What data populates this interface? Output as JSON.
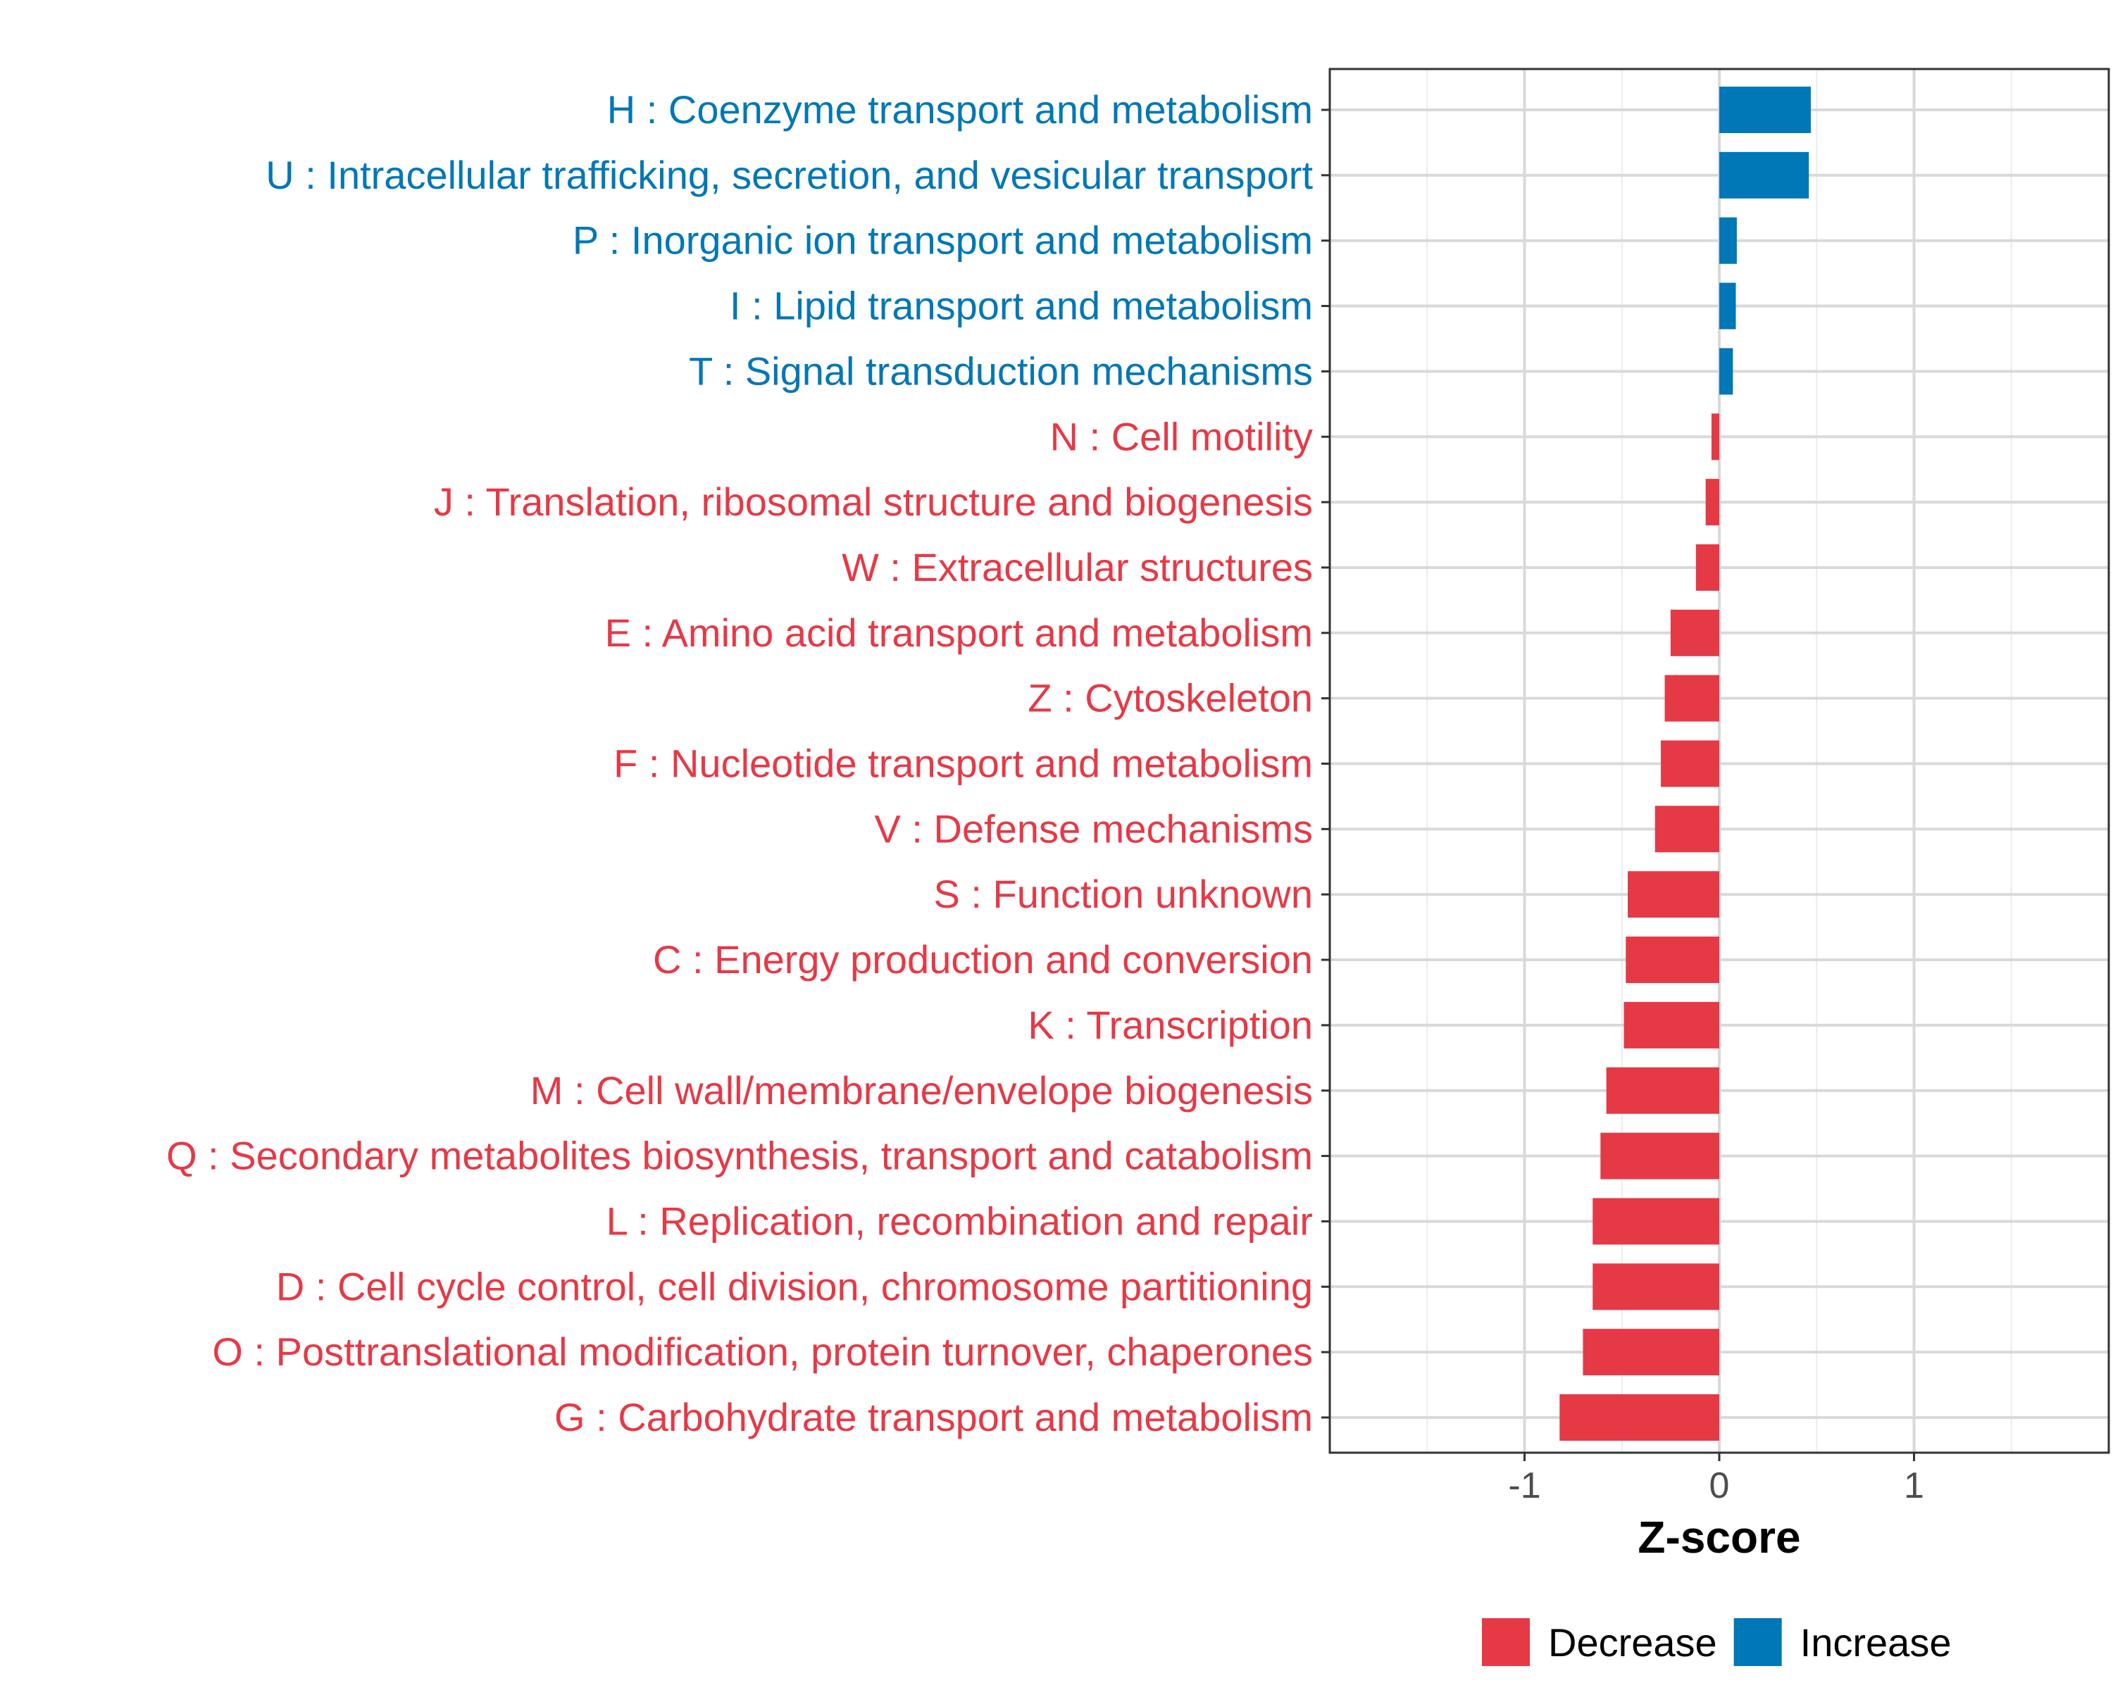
{
  "chart_data": {
    "type": "bar",
    "orientation": "horizontal",
    "title": "",
    "xlabel": "Z-score",
    "ylabel": "",
    "xlim": [
      -2,
      2
    ],
    "xticks": [
      -1,
      0,
      1
    ],
    "xtick_labels": [
      "-1",
      "0",
      "1"
    ],
    "grid": true,
    "categories": [
      "H : Coenzyme transport and metabolism",
      "U : Intracellular trafficking, secretion, and vesicular transport",
      "P : Inorganic ion transport and metabolism",
      "I : Lipid transport and metabolism",
      "T : Signal transduction mechanisms",
      "N : Cell motility",
      "J : Translation, ribosomal structure and biogenesis",
      "W : Extracellular structures",
      "E : Amino acid transport and metabolism",
      "Z : Cytoskeleton",
      "F : Nucleotide transport and metabolism",
      "V : Defense mechanisms",
      "S : Function unknown",
      "C : Energy production and conversion",
      "K : Transcription",
      "M : Cell wall/membrane/envelope biogenesis",
      "Q : Secondary metabolites biosynthesis, transport and catabolism",
      "L : Replication, recombination and repair",
      "D : Cell cycle control, cell division, chromosome partitioning",
      "O : Posttranslational modification, protein turnover, chaperones",
      "G : Carbohydrate transport and metabolism"
    ],
    "values": [
      0.47,
      0.46,
      0.09,
      0.085,
      0.07,
      -0.04,
      -0.07,
      -0.12,
      -0.25,
      -0.28,
      -0.3,
      -0.33,
      -0.47,
      -0.48,
      -0.49,
      -0.58,
      -0.61,
      -0.65,
      -0.65,
      -0.7,
      -0.82
    ],
    "groups": [
      "Increase",
      "Increase",
      "Increase",
      "Increase",
      "Increase",
      "Decrease",
      "Decrease",
      "Decrease",
      "Decrease",
      "Decrease",
      "Decrease",
      "Decrease",
      "Decrease",
      "Decrease",
      "Decrease",
      "Decrease",
      "Decrease",
      "Decrease",
      "Decrease",
      "Decrease",
      "Decrease"
    ],
    "legend": [
      {
        "name": "Decrease",
        "color": "#E63946"
      },
      {
        "name": "Increase",
        "color": "#0077B6"
      }
    ],
    "legend_position": "bottom"
  }
}
